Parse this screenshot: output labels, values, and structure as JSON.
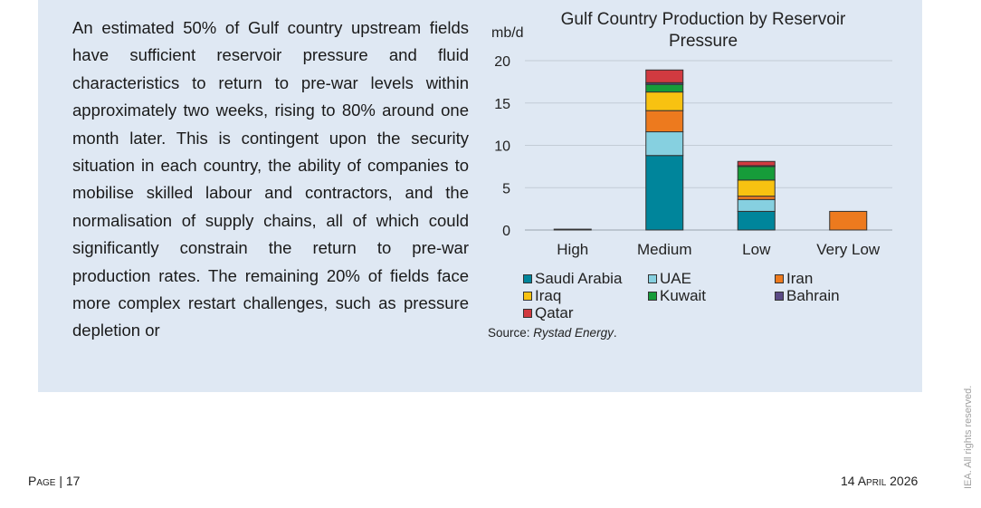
{
  "body_text": "An estimated 50% of Gulf country upstream fields have sufficient reservoir pressure and fluid characteristics to return to pre-war levels within approximately two weeks, rising to 80% around one month later. This is contingent upon the security situation in each country, the ability of companies to mobilise skilled labour and contractors, and the normalisation of supply chains, all of which could significantly constrain the return to pre-war production rates. The remaining 20% of fields face more complex restart challenges, such as pressure depletion or",
  "source_label": "Source: ",
  "source_name": "Rystad Energy",
  "source_end": ".",
  "footer": {
    "page_label": "Page | 17",
    "date": "14 April 2026"
  },
  "rights": "IEA. All rights reserved.",
  "chart_data": {
    "type": "bar",
    "stacked": true,
    "title": "Gulf Country Production by Reservoir Pressure",
    "ylabel": "mb/d",
    "xlabel": "",
    "ylim": [
      0,
      20
    ],
    "yticks": [
      0,
      5,
      10,
      15,
      20
    ],
    "grid": true,
    "legend_position": "bottom",
    "categories": [
      "High",
      "Medium",
      "Low",
      "Very Low"
    ],
    "series": [
      {
        "name": "Saudi Arabia",
        "color": "#00859b",
        "values": [
          0.1,
          8.8,
          2.2,
          0
        ]
      },
      {
        "name": "UAE",
        "color": "#86d0e0",
        "values": [
          0,
          2.8,
          1.4,
          0
        ]
      },
      {
        "name": "Iran",
        "color": "#ed7a1e",
        "values": [
          0,
          2.5,
          0.4,
          2.2
        ]
      },
      {
        "name": "Iraq",
        "color": "#f8c211",
        "values": [
          0,
          2.2,
          1.9,
          0
        ]
      },
      {
        "name": "Kuwait",
        "color": "#169c3a",
        "values": [
          0,
          0.9,
          1.6,
          0
        ]
      },
      {
        "name": "Bahrain",
        "color": "#5a4a85",
        "values": [
          0,
          0.2,
          0.1,
          0
        ]
      },
      {
        "name": "Qatar",
        "color": "#d13a40",
        "values": [
          0,
          1.5,
          0.5,
          0
        ]
      }
    ]
  }
}
